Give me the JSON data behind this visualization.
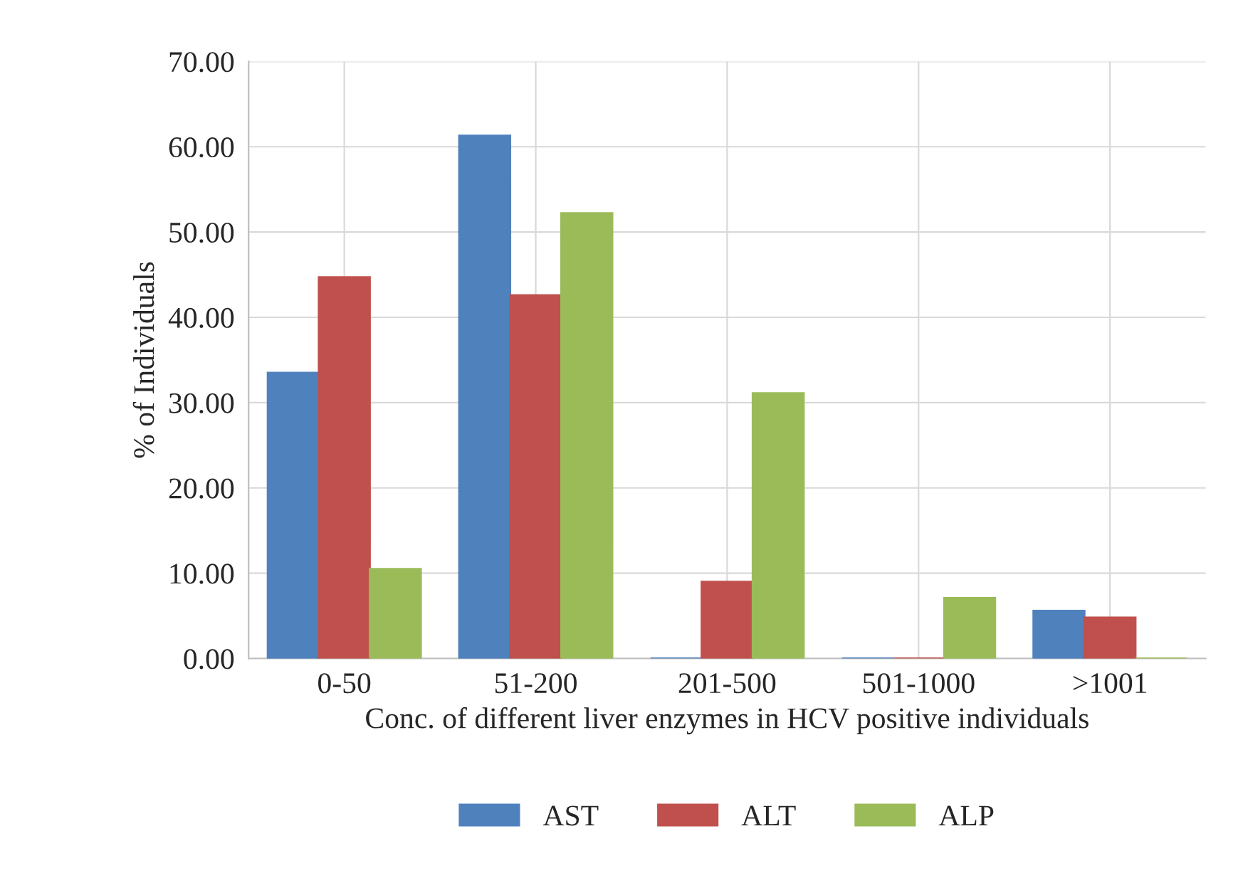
{
  "chart_data": {
    "type": "bar",
    "xlabel": "Conc. of different liver enzymes in HCV positive individuals",
    "ylabel": "% of Individuals",
    "categories": [
      "0-50",
      "51-200",
      "201-500",
      "501-1000",
      ">1001"
    ],
    "series": [
      {
        "name": "AST",
        "color": "#4f81bd",
        "values": [
          33.5,
          61.3,
          0,
          0,
          5.6
        ]
      },
      {
        "name": "ALT",
        "color": "#c0504d",
        "values": [
          44.7,
          42.6,
          9.0,
          0,
          4.8
        ]
      },
      {
        "name": "ALP",
        "color": "#9bbb59",
        "values": [
          10.5,
          52.2,
          31.1,
          7.1,
          0
        ]
      }
    ],
    "ylim": [
      0,
      70
    ],
    "yticks": [
      {
        "value": 0,
        "label": "0.00"
      },
      {
        "value": 10,
        "label": "10.00"
      },
      {
        "value": 20,
        "label": "20.00"
      },
      {
        "value": 30,
        "label": "30.00"
      },
      {
        "value": 40,
        "label": "40.00"
      },
      {
        "value": 50,
        "label": "50.00"
      },
      {
        "value": 60,
        "label": "60.00"
      },
      {
        "value": 70,
        "label": "70.00"
      }
    ],
    "grid": true,
    "legend": "bottom"
  }
}
